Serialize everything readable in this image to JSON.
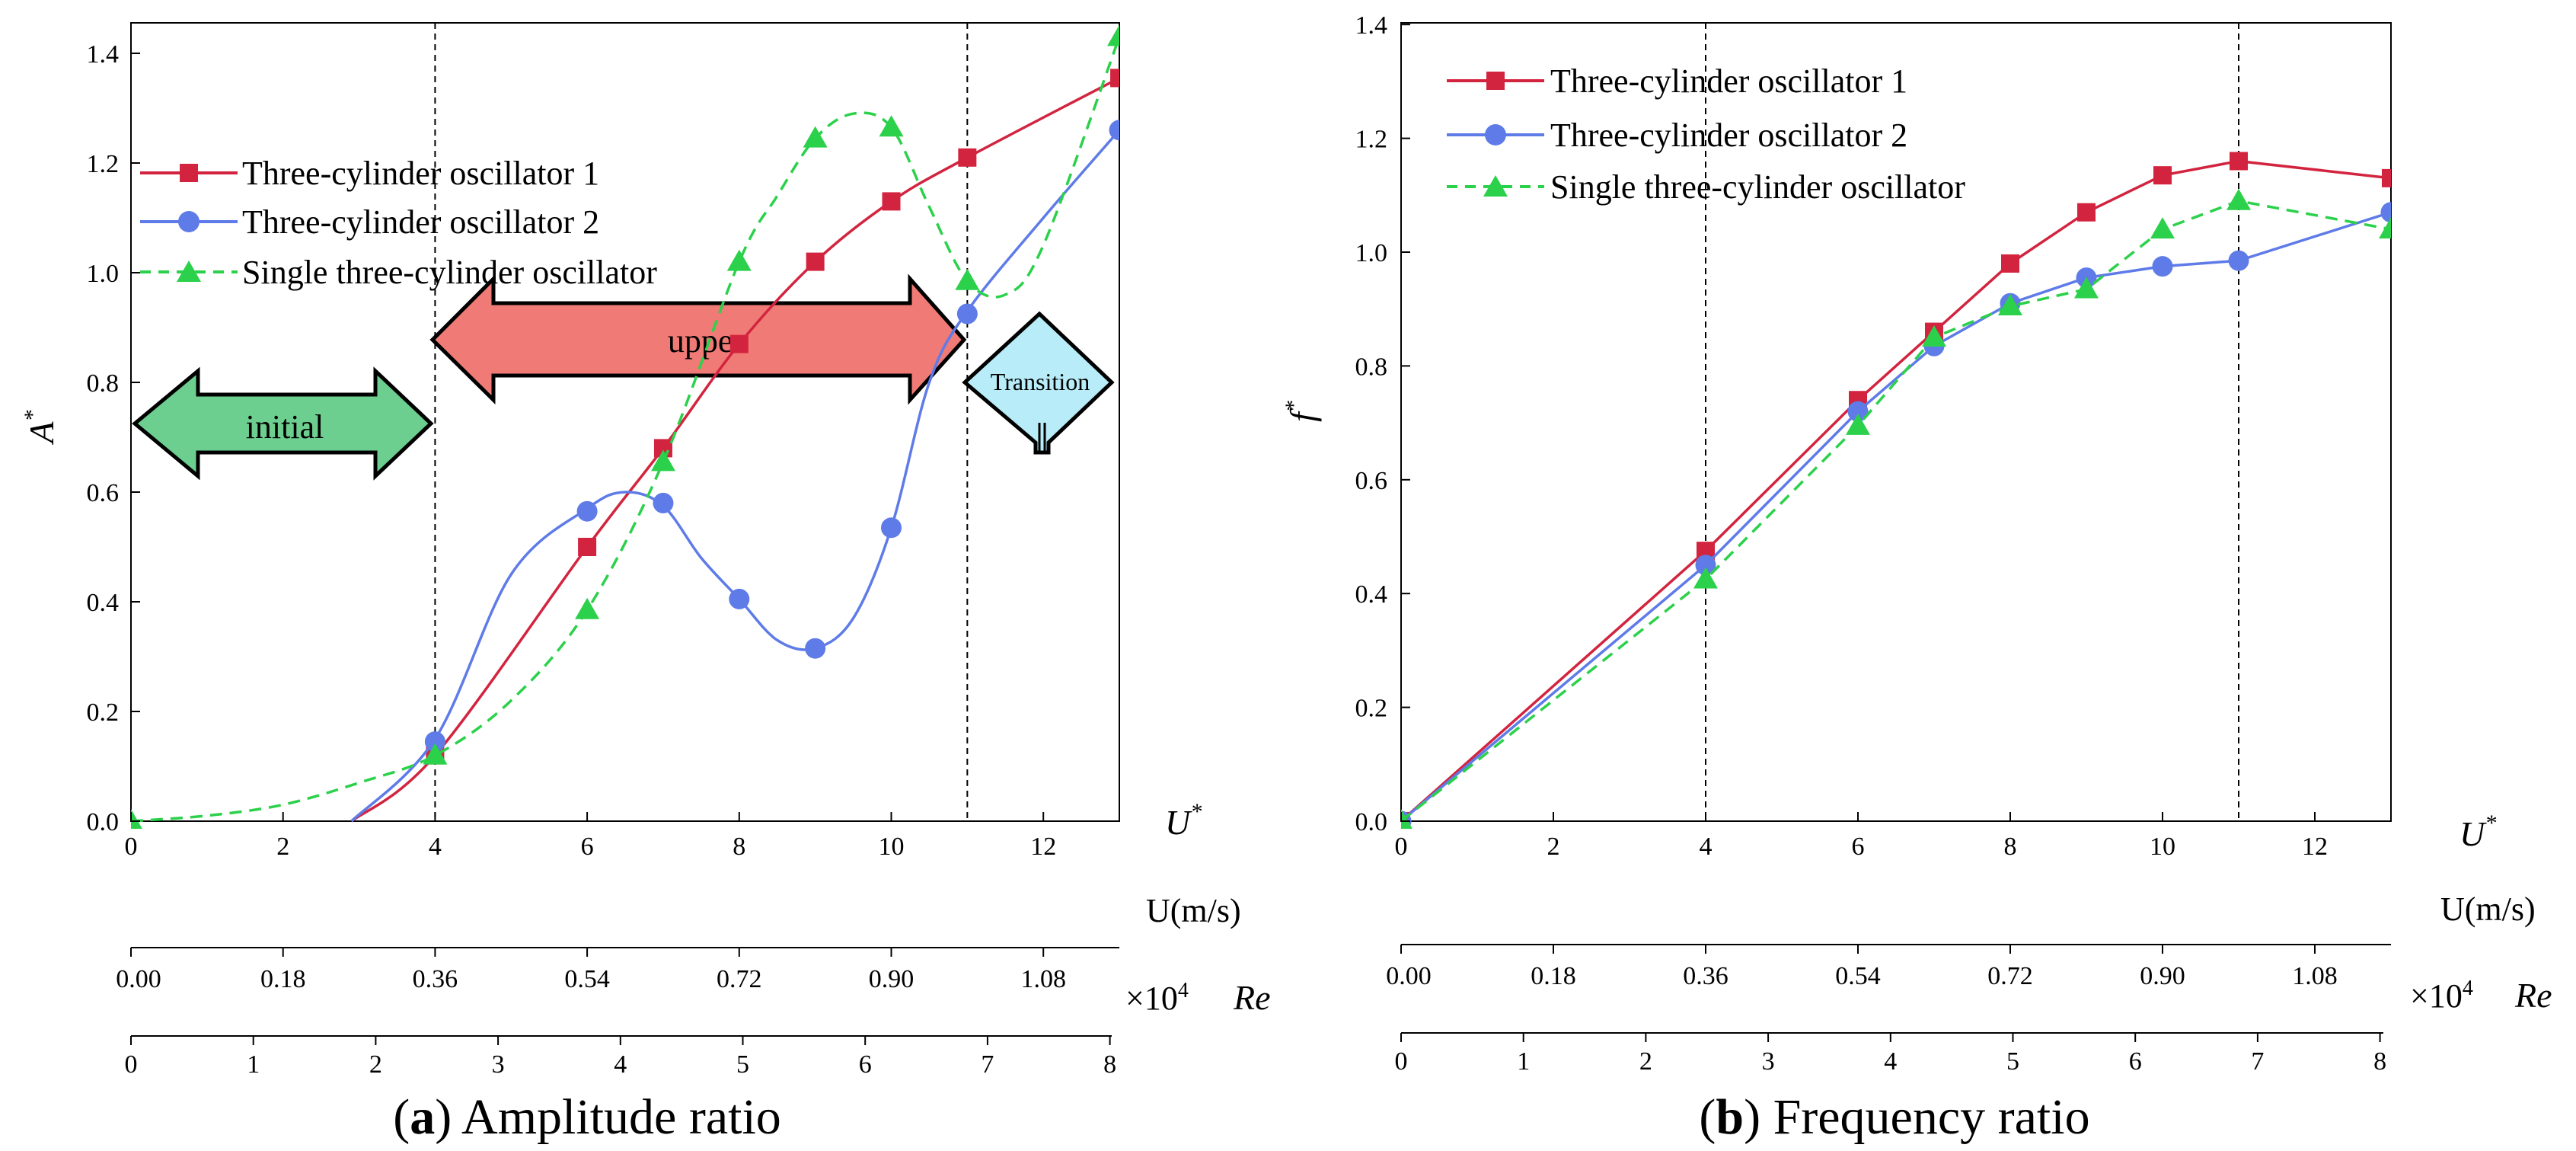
{
  "colors": {
    "series1": "#d3243f",
    "series2": "#5e7be8",
    "series3": "#2bd14a",
    "initial_arrow": "#6ccf8f",
    "upper_arrow": "#f07b76",
    "transition_arrow": "#b7ecf8"
  },
  "panels": [
    {
      "caption_letter": "a",
      "caption_text": "Amplitude ratio",
      "y_axis_label": "A",
      "x_axis_label": "U",
      "velocity_axis_label": "U(m/s)",
      "re_axis_label": "Re",
      "re_multiplier": "×10",
      "re_exponent": "4",
      "legend": [
        "Three-cylinder oscillator 1",
        "Three-cylinder oscillator 2",
        "Single three-cylinder oscillator"
      ],
      "regions": {
        "initial": "initial",
        "upper": "upper",
        "transition": "Transition"
      }
    },
    {
      "caption_letter": "b",
      "caption_text": "Frequency ratio",
      "y_axis_label": "f",
      "x_axis_label": "U",
      "velocity_axis_label": "U(m/s)",
      "re_axis_label": "Re",
      "re_multiplier": "×10",
      "re_exponent": "4",
      "legend": [
        "Three-cylinder oscillator 1",
        "Three-cylinder oscillator 2",
        "Single three-cylinder oscillator"
      ]
    }
  ],
  "chart_data": [
    {
      "type": "line",
      "title": "Amplitude ratio",
      "xlabel": "U*",
      "ylabel": "A*",
      "xlim": [
        0,
        13
      ],
      "ylim": [
        0,
        1.45
      ],
      "x_ticks": [
        "0",
        "2",
        "4",
        "6",
        "8",
        "10",
        "12"
      ],
      "y_ticks": [
        "0.0",
        "0.2",
        "0.4",
        "0.6",
        "0.8",
        "1.0",
        "1.2",
        "1.4"
      ],
      "velocity_ticks": [
        "0.00",
        "0.18",
        "0.36",
        "0.54",
        "0.72",
        "0.90",
        "1.08"
      ],
      "re_ticks": [
        "0",
        "1",
        "2",
        "3",
        "4",
        "5",
        "6",
        "7",
        "8"
      ],
      "vlines": [
        4,
        11
      ],
      "series": [
        {
          "name": "Three-cylinder oscillator 1",
          "marker": "square",
          "dash": "solid",
          "markers_x": [
            4,
            6,
            7,
            8,
            9,
            10,
            11,
            13
          ],
          "markers_y": [
            0.12,
            0.5,
            0.68,
            0.87,
            1.02,
            1.13,
            1.21,
            1.355
          ],
          "curve_x": [
            2.9,
            4,
            6,
            7,
            8,
            9,
            10,
            11,
            13
          ],
          "curve_y": [
            0.0,
            0.12,
            0.5,
            0.68,
            0.87,
            1.02,
            1.13,
            1.21,
            1.355
          ]
        },
        {
          "name": "Three-cylinder oscillator 2",
          "marker": "circle",
          "dash": "solid",
          "markers_x": [
            4,
            6,
            7,
            8,
            9,
            10,
            11,
            13
          ],
          "markers_y": [
            0.145,
            0.565,
            0.58,
            0.405,
            0.315,
            0.535,
            0.925,
            1.26
          ],
          "curve_x": [
            2.9,
            4,
            5,
            6,
            6.5,
            7,
            7.5,
            8,
            8.5,
            9,
            9.5,
            10,
            10.5,
            11,
            12,
            13
          ],
          "curve_y": [
            0.0,
            0.15,
            0.45,
            0.57,
            0.6,
            0.575,
            0.48,
            0.405,
            0.33,
            0.315,
            0.37,
            0.535,
            0.8,
            0.93,
            1.1,
            1.26
          ]
        },
        {
          "name": "Single three-cylinder oscillator",
          "marker": "triangle",
          "dash": "dashed",
          "markers_x": [
            0,
            4,
            6,
            7,
            8,
            9,
            10,
            11,
            13
          ],
          "markers_y": [
            0.0,
            0.12,
            0.385,
            0.655,
            1.02,
            1.245,
            1.265,
            0.985,
            1.43
          ],
          "curve_x": [
            0,
            1,
            2,
            3,
            4,
            5,
            6,
            7,
            8,
            8.5,
            9,
            9.5,
            10,
            10.5,
            11,
            11.5,
            12,
            13
          ],
          "curve_y": [
            0.0,
            0.01,
            0.03,
            0.07,
            0.12,
            0.22,
            0.385,
            0.655,
            1.02,
            1.14,
            1.245,
            1.29,
            1.265,
            1.12,
            0.985,
            0.96,
            1.05,
            1.43
          ]
        }
      ]
    },
    {
      "type": "line",
      "title": "Frequency ratio",
      "xlabel": "U*",
      "ylabel": "f*",
      "xlim": [
        0,
        13
      ],
      "ylim": [
        0,
        1.4
      ],
      "x_ticks": [
        "0",
        "2",
        "4",
        "6",
        "8",
        "10",
        "12"
      ],
      "y_ticks": [
        "0.0",
        "0.2",
        "0.4",
        "0.6",
        "0.8",
        "1.0",
        "1.2",
        "1.4"
      ],
      "velocity_ticks": [
        "0.00",
        "0.18",
        "0.36",
        "0.54",
        "0.72",
        "0.90",
        "1.08"
      ],
      "re_ticks": [
        "0",
        "1",
        "2",
        "3",
        "4",
        "5",
        "6",
        "7",
        "8"
      ],
      "vlines": [
        4,
        11
      ],
      "series": [
        {
          "name": "Three-cylinder oscillator 1",
          "marker": "square",
          "dash": "solid",
          "markers_x": [
            0,
            4,
            6,
            7,
            8,
            9,
            10,
            11,
            13
          ],
          "markers_y": [
            0.0,
            0.475,
            0.74,
            0.86,
            0.98,
            1.07,
            1.135,
            1.16,
            1.13
          ]
        },
        {
          "name": "Three-cylinder oscillator 2",
          "marker": "circle",
          "dash": "solid",
          "markers_x": [
            0,
            4,
            6,
            7,
            8,
            9,
            10,
            11,
            13
          ],
          "markers_y": [
            0.0,
            0.45,
            0.72,
            0.835,
            0.91,
            0.955,
            0.975,
            0.985,
            1.07
          ]
        },
        {
          "name": "Single three-cylinder oscillator",
          "marker": "triangle",
          "dash": "dashed",
          "markers_x": [
            0,
            4,
            6,
            7,
            8,
            9,
            10,
            11,
            13
          ],
          "markers_y": [
            0.0,
            0.425,
            0.695,
            0.85,
            0.905,
            0.935,
            1.04,
            1.09,
            1.04
          ]
        }
      ]
    }
  ]
}
